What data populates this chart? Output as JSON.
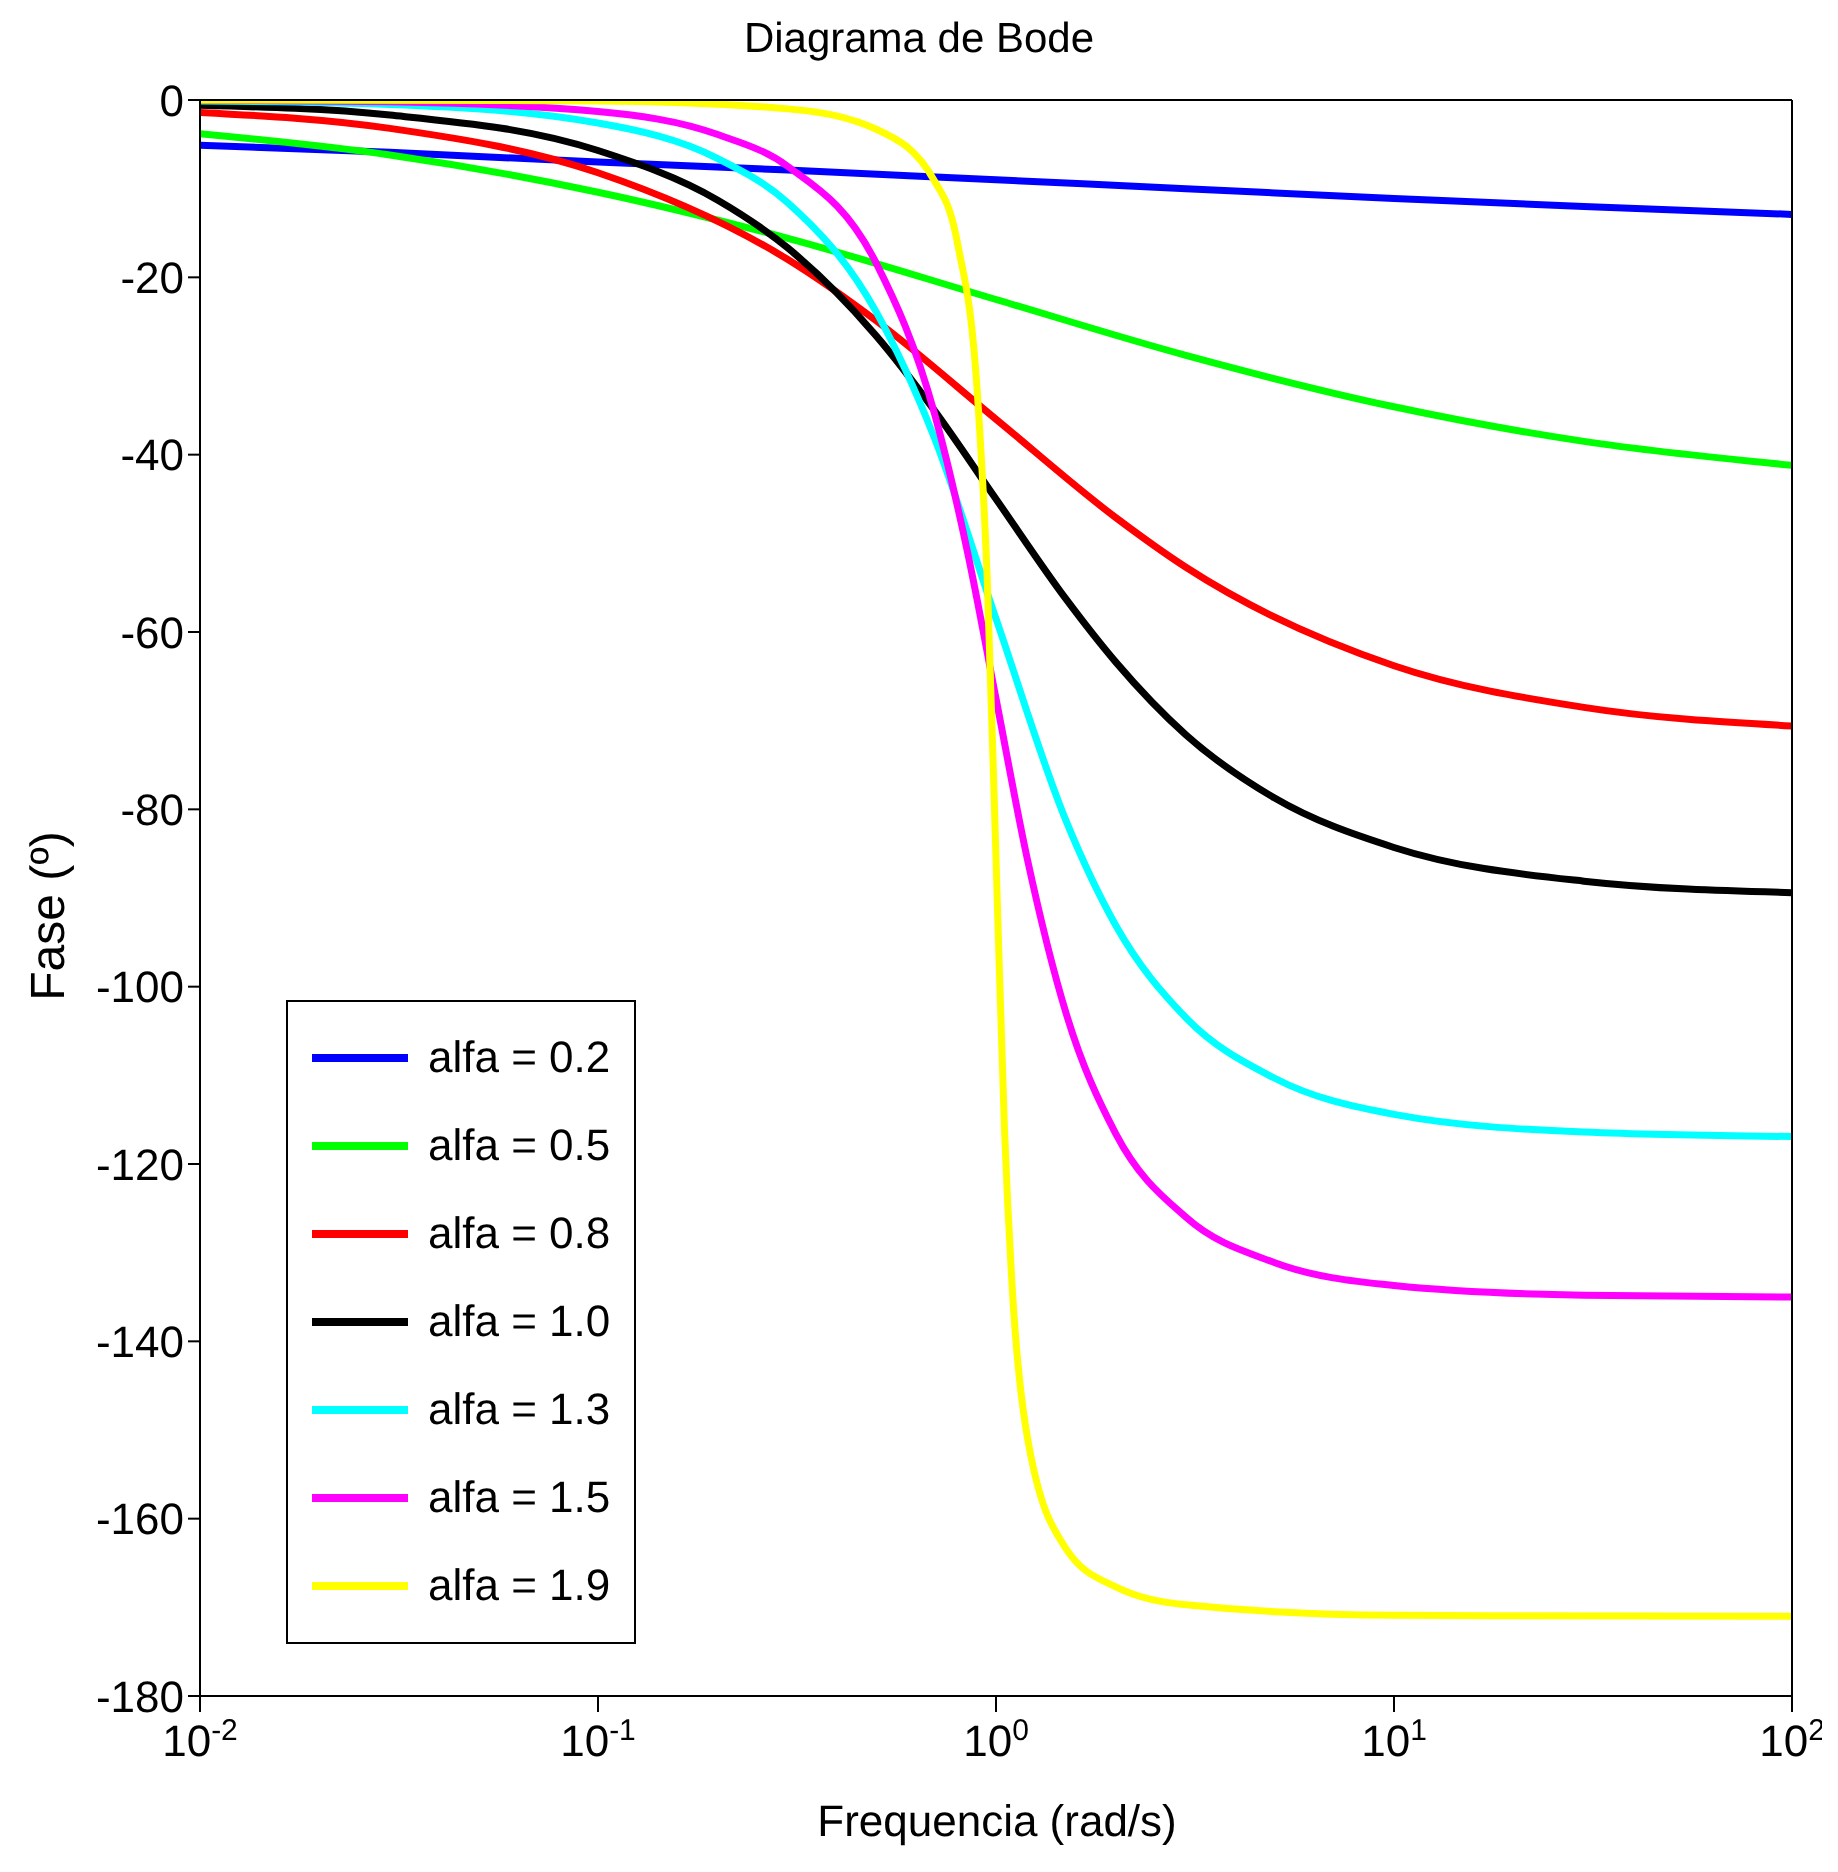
{
  "chart_data": {
    "type": "line",
    "title": "Diagrama de Bode",
    "xlabel": "Frequencia (rad/s)",
    "ylabel": "Fase (º)",
    "log": "x",
    "grid": false,
    "legend": "bottom left",
    "marker": "none",
    "line_style": "solid",
    "xlim": [
      0.01,
      100
    ],
    "xticks": [
      {
        "value": 0.01,
        "label": "10$^{-2}$"
      },
      {
        "value": 0.1,
        "label": "10$^{-1}$"
      },
      {
        "value": 1,
        "label": "10$^{0}$"
      },
      {
        "value": 10,
        "label": "10$^{1}$"
      },
      {
        "value": 100,
        "label": "10$^{2}$"
      }
    ],
    "ylim": [
      -180,
      0
    ],
    "yticks": [
      -180,
      -160,
      -140,
      -120,
      -100,
      -80,
      -60,
      -40,
      -20,
      0
    ],
    "series": [
      {
        "name": "alfa = 0.2",
        "color": "#0000ff",
        "x": [
          0.01,
          0.03,
          0.1,
          0.3,
          1,
          3,
          10,
          30,
          100
        ],
        "values": [
          -5.1,
          -5.9,
          -7.0,
          -7.9,
          -9.0,
          -10.0,
          -11.1,
          -12.0,
          -12.9
        ]
      },
      {
        "name": "alfa = 0.5",
        "color": "#00ff00",
        "x": [
          0.01,
          0.03,
          0.1,
          0.3,
          1,
          3,
          10,
          30,
          100
        ],
        "values": [
          -3.8,
          -6.2,
          -10.4,
          -15.6,
          -22.5,
          -28.8,
          -34.6,
          -38.5,
          -41.2
        ]
      },
      {
        "name": "alfa = 0.8",
        "color": "#ff0000",
        "x": [
          0.01,
          0.03,
          0.1,
          0.3,
          0.5,
          1,
          2,
          3,
          10,
          30,
          100
        ],
        "values": [
          -1.4,
          -3.2,
          -8.2,
          -18.0,
          -24.9,
          -36.0,
          -47.1,
          -52.7,
          -63.8,
          -68.5,
          -70.6
        ]
      },
      {
        "name": "alfa = 1.0",
        "color": "#000000",
        "x": [
          0.01,
          0.03,
          0.1,
          0.2,
          0.3,
          0.5,
          0.7,
          1,
          1.5,
          2,
          3,
          5,
          10,
          30,
          100
        ],
        "values": [
          -0.6,
          -1.7,
          -5.7,
          -11.3,
          -16.7,
          -26.6,
          -35.0,
          -45.0,
          -56.3,
          -63.4,
          -71.6,
          -78.7,
          -84.3,
          -88.1,
          -89.4
        ]
      },
      {
        "name": "alfa = 1.3",
        "color": "#00ffff",
        "x": [
          0.01,
          0.03,
          0.1,
          0.2,
          0.3,
          0.5,
          0.7,
          1,
          1.5,
          2,
          3,
          5,
          10,
          30,
          100
        ],
        "values": [
          -0.1,
          -0.5,
          -2.6,
          -6.6,
          -11.6,
          -23.9,
          -38.1,
          -58.5,
          -81.3,
          -93.1,
          -103.5,
          -110.3,
          -114.4,
          -116.4,
          -116.9
        ]
      },
      {
        "name": "alfa = 1.5",
        "color": "#ff00ff",
        "x": [
          0.01,
          0.03,
          0.1,
          0.2,
          0.3,
          0.5,
          0.7,
          0.85,
          1,
          1.2,
          1.5,
          2,
          3,
          5,
          10,
          30,
          100
        ],
        "values": [
          0,
          -0.2,
          -1.3,
          -3.9,
          -7.5,
          -18.4,
          -35.3,
          -51.2,
          -67.5,
          -85.7,
          -103.0,
          -116.6,
          -126.0,
          -131.1,
          -133.7,
          -134.8,
          -135.0
        ]
      },
      {
        "name": "alfa = 1.9",
        "color": "#ffff00",
        "x": [
          0.01,
          0.1,
          0.3,
          0.5,
          0.7,
          0.8,
          0.9,
          0.95,
          1,
          1.05,
          1.1,
          1.2,
          1.5,
          2,
          3,
          10,
          100
        ],
        "values": [
          0,
          -0.1,
          -1.0,
          -3.3,
          -9.1,
          -16.1,
          -33.8,
          -53.7,
          -85.5,
          -115.9,
          -134.4,
          -150.9,
          -163.4,
          -167.7,
          -169.7,
          -170.9,
          -171.0
        ]
      }
    ]
  }
}
